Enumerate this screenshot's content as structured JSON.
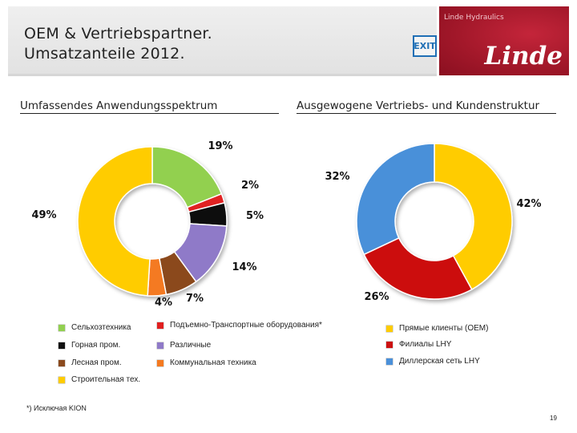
{
  "header": {
    "title_line1": "OEM & Vertriebspartner.",
    "title_line2": "Umsatzanteile 2012.",
    "exit_label": "EXIT",
    "brand_top": "Linde Hydraulics",
    "brand_logo": "Linde"
  },
  "sections": {
    "left": "Umfassendes Anwendungsspektrum",
    "right": "Ausgewogene Vertriebs- und Kundenstruktur"
  },
  "chart_data": [
    {
      "type": "pie",
      "variant": "donut",
      "title": "",
      "slices": [
        {
          "label": "Сельхозтехника",
          "value": 19,
          "display": "19%",
          "color": "#92d050"
        },
        {
          "label": "Подъемно-Транспортные оборудования*",
          "value": 2,
          "display": "2%",
          "color": "#e02020"
        },
        {
          "label": "Горная пром.",
          "value": 5,
          "display": "5%",
          "color": "#111111"
        },
        {
          "label": "Различные",
          "value": 14,
          "display": "14%",
          "color": "#8f7ac8"
        },
        {
          "label": "Лесная пром.",
          "value": 7,
          "display": "7%",
          "color": "#8b4a1e"
        },
        {
          "label": "Коммунальная техника",
          "value": 4,
          "display": "4%",
          "color": "#f47a20"
        },
        {
          "label": "Строительная тех.",
          "value": 49,
          "display": "49%",
          "color": "#ffcc00"
        }
      ]
    },
    {
      "type": "pie",
      "variant": "donut",
      "title": "",
      "slices": [
        {
          "label": "Прямые клиенты (OEM)",
          "value": 42,
          "display": "42%",
          "color": "#ffcc00"
        },
        {
          "label": "Филиалы LHY",
          "value": 26,
          "display": "26%",
          "color": "#cc1111"
        },
        {
          "label": "Диллерская сеть LHY",
          "value": 32,
          "display": "32%",
          "color": "#4a90d9"
        }
      ]
    }
  ],
  "footnote": "*) Исключая KION",
  "page_number": "19"
}
